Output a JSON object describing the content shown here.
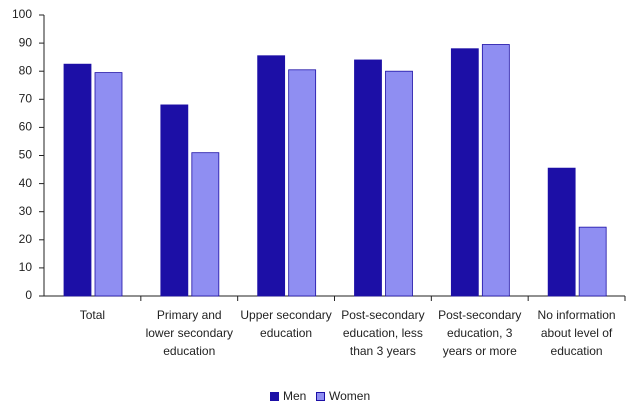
{
  "chart_data": {
    "type": "bar",
    "categories": [
      "Total",
      "Primary and lower secondary education",
      "Upper secondary education",
      "Post-secondary education, less than 3 years",
      "Post-secondary education, 3 years or more",
      "No information about level of education"
    ],
    "series": [
      {
        "name": "Men",
        "color": "#1c0fa6",
        "values": [
          82.5,
          68,
          85.5,
          84,
          88,
          45.5
        ]
      },
      {
        "name": "Women",
        "color": "#8f8ef2",
        "values": [
          79.5,
          51,
          80.5,
          80,
          89.5,
          24.5
        ]
      }
    ],
    "ylim": [
      0,
      100
    ],
    "yticks": [
      0,
      10,
      20,
      30,
      40,
      50,
      60,
      70,
      80,
      90,
      100
    ],
    "grid": false,
    "legend": "bottom"
  }
}
